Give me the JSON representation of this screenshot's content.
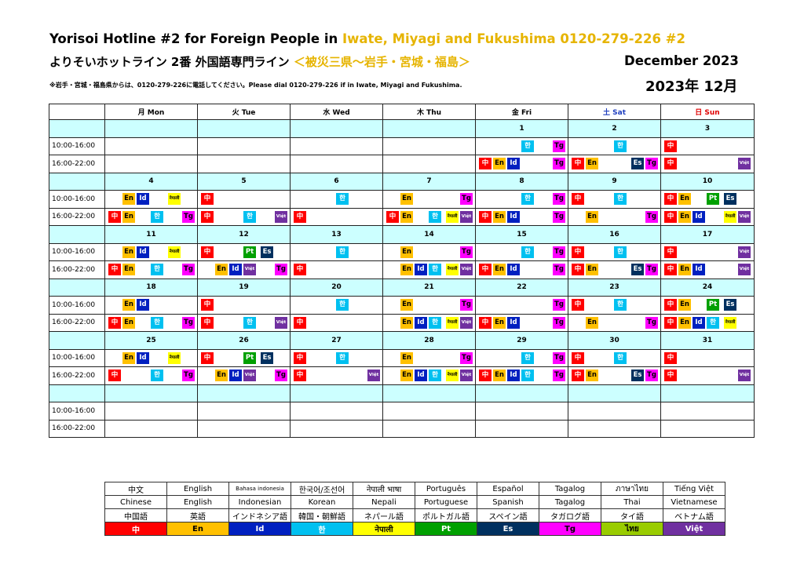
{
  "header": {
    "title_prefix": "Yorisoi Hotline #2 for Foreign People  in ",
    "title_area": "Iwate, Miyagi and Fukushima",
    "title_phone": "   0120-279-226 #2",
    "subtitle_prefix": "よりそいホットライン  2番 外国語専門ライン  ",
    "subtitle_area": "＜被災三県～岩手・宮城・福島＞",
    "month_en": "December  2023",
    "month_ja": "2023年 12月",
    "note": "※岩手・宮城・福島県からは、0120-279-226に電話してください。Please dial 0120-279-226 if in Iwate, Miyagi and Fukushima."
  },
  "weekdays": [
    {
      "label": "月 Mon",
      "color": "#000000"
    },
    {
      "label": "火 Tue",
      "color": "#000000"
    },
    {
      "label": "水 Wed",
      "color": "#000000"
    },
    {
      "label": "木 Thu",
      "color": "#000000"
    },
    {
      "label": "金 Fri",
      "color": "#000000"
    },
    {
      "label": "土 Sat",
      "color": "#1f3fbf"
    },
    {
      "label": "日 Sun",
      "color": "#e00000"
    }
  ],
  "slots": [
    "10:00-16:00",
    "16:00-22:00"
  ],
  "languages": [
    {
      "code": "zh",
      "chip": "中",
      "native": "中文",
      "english": "Chinese",
      "japanese": "中国語",
      "bg": "#ff0000",
      "fg": "#ffffff"
    },
    {
      "code": "en",
      "chip": "En",
      "native": "English",
      "english": "English",
      "japanese": "英語",
      "bg": "#ffc000",
      "fg": "#000000"
    },
    {
      "code": "id",
      "chip": "Id",
      "native": "Bahasa indonesia",
      "english": "Indonesian",
      "japanese": "インドネシア語",
      "bg": "#0020c0",
      "fg": "#ffffff"
    },
    {
      "code": "ko",
      "chip": "한",
      "native": "한국어/조선어",
      "english": "Korean",
      "japanese": "韓国・朝鮮語",
      "bg": "#00c0f0",
      "fg": "#ffffff"
    },
    {
      "code": "ne",
      "chip": "नेपाली",
      "native": "नेपाली भाषा",
      "english": "Nepali",
      "japanese": "ネパール語",
      "bg": "#ffff00",
      "fg": "#000000"
    },
    {
      "code": "pt",
      "chip": "Pt",
      "native": "Português",
      "english": "Portuguese",
      "japanese": "ポルトガル語",
      "bg": "#00a000",
      "fg": "#ffffff"
    },
    {
      "code": "es",
      "chip": "Es",
      "native": "Español",
      "english": "Spanish",
      "japanese": "スペイン語",
      "bg": "#00305f",
      "fg": "#ffffff"
    },
    {
      "code": "tg",
      "chip": "Tg",
      "native": "Tagalog",
      "english": "Tagalog",
      "japanese": "タガログ語",
      "bg": "#ff00ff",
      "fg": "#000000"
    },
    {
      "code": "th",
      "chip": "ไทย",
      "native": "ภาษาไทย",
      "english": "Thai",
      "japanese": "タイ語",
      "bg": "#99cc00",
      "fg": "#000000"
    },
    {
      "code": "vi",
      "chip": "Việt",
      "native": "Tiếng Việt",
      "english": "Vietnamese",
      "japanese": "ベトナム語",
      "bg": "#7030a0",
      "fg": "#ffffff"
    }
  ],
  "weeks": [
    {
      "dates": [
        "",
        "",
        "",
        "",
        "1",
        "2",
        "3"
      ],
      "am": [
        [],
        [],
        [],
        [],
        [
          "ko",
          "tg"
        ],
        [
          "ko"
        ],
        [
          "zh"
        ]
      ],
      "pm": [
        [],
        [],
        [],
        [],
        [
          "zh",
          "en",
          "id",
          "tg"
        ],
        [
          "zh",
          "en",
          "es",
          "tg"
        ],
        [
          "zh",
          "vi"
        ]
      ]
    },
    {
      "dates": [
        "4",
        "5",
        "6",
        "7",
        "8",
        "9",
        "10"
      ],
      "am": [
        [
          "en",
          "id",
          "ne"
        ],
        [
          "zh"
        ],
        [
          "ko"
        ],
        [
          "en",
          "tg"
        ],
        [
          "ko",
          "tg"
        ],
        [
          "zh",
          "ko"
        ],
        [
          "zh",
          "en",
          "pt",
          "es"
        ]
      ],
      "pm": [
        [
          "zh",
          "en",
          "ko",
          "tg"
        ],
        [
          "zh",
          "ko",
          "vi"
        ],
        [
          "zh"
        ],
        [
          "zh",
          "en",
          "ko",
          "ne",
          "vi"
        ],
        [
          "zh",
          "en",
          "id",
          "tg"
        ],
        [
          "en",
          "tg"
        ],
        [
          "zh",
          "en",
          "id",
          "ne",
          "vi"
        ]
      ]
    },
    {
      "dates": [
        "11",
        "12",
        "13",
        "14",
        "15",
        "16",
        "17"
      ],
      "am": [
        [
          "en",
          "id",
          "ne"
        ],
        [
          "zh",
          "pt",
          "es"
        ],
        [
          "ko"
        ],
        [
          "en",
          "tg"
        ],
        [
          "ko",
          "tg"
        ],
        [
          "zh",
          "ko"
        ],
        [
          "zh",
          "vi"
        ]
      ],
      "pm": [
        [
          "zh",
          "en",
          "ko",
          "tg"
        ],
        [
          "en",
          "id",
          "tg",
          "vi"
        ],
        [
          "zh"
        ],
        [
          "id",
          "en",
          "ko",
          "ne",
          "vi"
        ],
        [
          "zh",
          "en",
          "id",
          "tg"
        ],
        [
          "zh",
          "en",
          "es",
          "tg"
        ],
        [
          "zh",
          "en",
          "id",
          "vi"
        ]
      ]
    },
    {
      "dates": [
        "18",
        "19",
        "20",
        "21",
        "22",
        "23",
        "24"
      ],
      "am": [
        [
          "en",
          "id"
        ],
        [
          "zh"
        ],
        [
          "ko"
        ],
        [
          "en",
          "tg"
        ],
        [
          "tg"
        ],
        [
          "zh",
          "ko"
        ],
        [
          "zh",
          "en",
          "pt",
          "es"
        ]
      ],
      "pm": [
        [
          "zh",
          "en",
          "ko",
          "tg"
        ],
        [
          "zh",
          "ko",
          "vi"
        ],
        [
          "zh"
        ],
        [
          "id",
          "en",
          "ko",
          "ne",
          "vi"
        ],
        [
          "zh",
          "en",
          "id",
          "tg"
        ],
        [
          "en",
          "tg"
        ],
        [
          "zh",
          "en",
          "id",
          "ne",
          "ko"
        ]
      ]
    },
    {
      "dates": [
        "25",
        "26",
        "27",
        "28",
        "29",
        "30",
        "31"
      ],
      "am": [
        [
          "en",
          "id",
          "ne"
        ],
        [
          "zh",
          "pt",
          "es"
        ],
        [
          "zh",
          "ko"
        ],
        [
          "en",
          "tg"
        ],
        [
          "ko",
          "tg"
        ],
        [
          "zh",
          "ko"
        ],
        [
          "zh"
        ]
      ],
      "pm": [
        [
          "zh",
          "ko",
          "tg"
        ],
        [
          "en",
          "id",
          "tg",
          "vi"
        ],
        [
          "zh",
          "vi"
        ],
        [
          "id",
          "en",
          "ko",
          "ne",
          "vi"
        ],
        [
          "zh",
          "en",
          "id",
          "tg",
          "ko"
        ],
        [
          "zh",
          "en",
          "es",
          "tg"
        ],
        [
          "zh",
          "vi"
        ]
      ]
    },
    {
      "dates": [
        "",
        "",
        "",
        "",
        "",
        "",
        ""
      ],
      "am": [
        [],
        [],
        [],
        [],
        [],
        [],
        []
      ],
      "pm": [
        [],
        [],
        [],
        [],
        [],
        [],
        []
      ]
    }
  ]
}
